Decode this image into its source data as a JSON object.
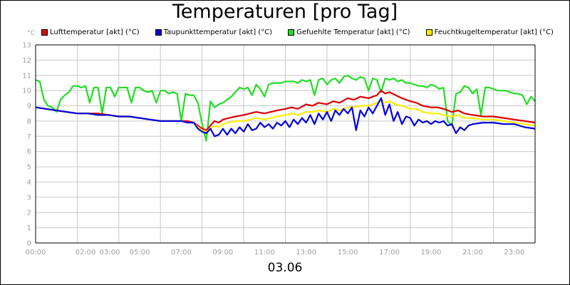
{
  "title": "Temperaturen [pro Tag]",
  "date": "03.06",
  "unit": "°C",
  "chart_data": {
    "type": "line",
    "title": "Temperaturen [pro Tag]",
    "ylabel": "°C",
    "xlabel": "03.06",
    "ylim": [
      0,
      13
    ],
    "xlim": [
      0,
      24
    ],
    "grid": true,
    "legend_position": "top",
    "y_ticks": [
      "0",
      "1",
      "2",
      "3",
      "4",
      "5",
      "6",
      "7",
      "8",
      "9",
      "10",
      "11",
      "12",
      "13"
    ],
    "x_ticks": [
      {
        "h": 0,
        "label": "00:00"
      },
      {
        "h": 2,
        "label": "02:00"
      },
      {
        "h": 3,
        "label": "03:00"
      },
      {
        "h": 5,
        "label": "05:00"
      },
      {
        "h": 7,
        "label": "07:00"
      },
      {
        "h": 9,
        "label": "09:00"
      },
      {
        "h": 11,
        "label": "11:00"
      },
      {
        "h": 13,
        "label": "13:00"
      },
      {
        "h": 15,
        "label": "15:00"
      },
      {
        "h": 17,
        "label": "17:00"
      },
      {
        "h": 19,
        "label": "19:00"
      },
      {
        "h": 21,
        "label": "21:00"
      },
      {
        "h": 23,
        "label": "23:00"
      }
    ],
    "x_grid_hours": [
      0,
      2,
      4,
      6,
      8,
      10,
      12,
      14,
      16,
      18,
      20,
      22,
      24
    ],
    "series": [
      {
        "name": "Gefuehlte Temperatur [akt] (°C)",
        "color": "#22dd22",
        "x": [
          0,
          0.2,
          0.4,
          0.6,
          0.8,
          1.0,
          1.2,
          1.4,
          1.6,
          1.8,
          2.0,
          2.2,
          2.4,
          2.6,
          2.8,
          3.0,
          3.2,
          3.4,
          3.6,
          3.8,
          4.0,
          4.2,
          4.4,
          4.6,
          4.8,
          5.0,
          5.2,
          5.4,
          5.6,
          5.8,
          6.0,
          6.2,
          6.4,
          6.6,
          6.8,
          7.0,
          7.2,
          7.4,
          7.6,
          7.8,
          8.0,
          8.2,
          8.4,
          8.6,
          8.8,
          9.0,
          9.2,
          9.4,
          9.6,
          9.8,
          10.0,
          10.2,
          10.4,
          10.6,
          10.8,
          11.0,
          11.2,
          11.4,
          11.6,
          11.8,
          12.0,
          12.2,
          12.4,
          12.6,
          12.8,
          13.0,
          13.2,
          13.4,
          13.6,
          13.8,
          14.0,
          14.2,
          14.4,
          14.6,
          14.8,
          15.0,
          15.2,
          15.4,
          15.6,
          15.8,
          16.0,
          16.2,
          16.4,
          16.6,
          16.8,
          17.0,
          17.2,
          17.4,
          17.6,
          17.8,
          18.0,
          18.2,
          18.4,
          18.6,
          18.8,
          19.0,
          19.2,
          19.4,
          19.6,
          19.8,
          20.0,
          20.2,
          20.4,
          20.6,
          20.8,
          21.0,
          21.2,
          21.4,
          21.6,
          21.8,
          22.0,
          22.2,
          22.4,
          22.6,
          22.8,
          23.0,
          23.2,
          23.4,
          23.6,
          23.8,
          24.0
        ],
        "values": [
          10.7,
          10.6,
          9.4,
          9.0,
          8.9,
          8.6,
          9.4,
          9.7,
          9.9,
          10.3,
          10.3,
          10.2,
          10.3,
          9.2,
          10.2,
          10.2,
          8.5,
          10.2,
          10.2,
          9.6,
          10.2,
          10.2,
          10.2,
          9.2,
          10.2,
          10.2,
          10.0,
          9.9,
          10.0,
          9.2,
          10.0,
          10.0,
          9.8,
          9.9,
          9.8,
          8.0,
          9.8,
          9.7,
          9.7,
          9.2,
          7.8,
          6.7,
          9.3,
          8.9,
          9.1,
          9.2,
          9.4,
          9.6,
          9.9,
          10.2,
          10.1,
          10.2,
          9.7,
          10.4,
          10.1,
          9.6,
          10.4,
          10.5,
          10.5,
          10.5,
          10.6,
          10.6,
          10.6,
          10.5,
          10.7,
          10.6,
          10.7,
          9.7,
          10.7,
          10.8,
          10.4,
          10.7,
          10.8,
          10.5,
          10.9,
          11.0,
          10.8,
          10.7,
          10.9,
          10.8,
          10.0,
          10.8,
          10.7,
          9.9,
          10.8,
          10.7,
          10.8,
          10.6,
          10.7,
          10.5,
          10.5,
          10.4,
          10.3,
          10.3,
          10.2,
          10.4,
          10.3,
          10.1,
          10.2,
          8.0,
          7.7,
          9.8,
          9.9,
          10.3,
          10.2,
          9.8,
          10.1,
          8.4,
          10.2,
          10.2,
          10.1,
          10.0,
          10.0,
          10.0,
          9.9,
          9.8,
          9.8,
          9.7,
          9.1,
          9.6,
          9.3
        ]
      },
      {
        "name": "Lufttemperatur [akt] (°C)",
        "color": "#dd0000",
        "x": [
          0,
          0.5,
          1.0,
          1.5,
          2.0,
          2.5,
          3.0,
          3.5,
          4.0,
          4.5,
          5.0,
          5.5,
          6.0,
          6.5,
          7.0,
          7.3,
          7.6,
          7.8,
          8.0,
          8.2,
          8.4,
          8.6,
          8.8,
          9.0,
          9.3,
          9.6,
          10.0,
          10.3,
          10.6,
          11.0,
          11.3,
          11.6,
          12.0,
          12.3,
          12.6,
          13.0,
          13.3,
          13.6,
          14.0,
          14.3,
          14.6,
          15.0,
          15.3,
          15.6,
          16.0,
          16.2,
          16.4,
          16.6,
          16.8,
          17.0,
          17.3,
          17.6,
          18.0,
          18.3,
          18.6,
          19.0,
          19.3,
          19.6,
          20.0,
          20.3,
          20.6,
          21.0,
          21.5,
          22.0,
          22.5,
          23.0,
          23.5,
          24.0
        ],
        "values": [
          8.9,
          8.8,
          8.7,
          8.6,
          8.5,
          8.5,
          8.5,
          8.4,
          8.3,
          8.3,
          8.2,
          8.1,
          8.0,
          8.0,
          8.0,
          8.0,
          7.9,
          7.7,
          7.5,
          7.4,
          7.7,
          8.0,
          7.9,
          8.1,
          8.2,
          8.3,
          8.4,
          8.5,
          8.6,
          8.5,
          8.6,
          8.7,
          8.8,
          8.9,
          8.8,
          9.1,
          9.0,
          9.2,
          9.1,
          9.3,
          9.2,
          9.5,
          9.4,
          9.6,
          9.5,
          9.6,
          9.7,
          10.0,
          9.8,
          9.9,
          9.7,
          9.5,
          9.3,
          9.2,
          9.0,
          8.9,
          8.9,
          8.8,
          8.6,
          8.7,
          8.5,
          8.4,
          8.3,
          8.3,
          8.2,
          8.1,
          8.0,
          7.9
        ]
      },
      {
        "name": "Feuchtkugeltemperatur [akt] (°C)",
        "color": "#ffee00",
        "x": [
          0,
          0.5,
          1.0,
          1.5,
          2.0,
          2.5,
          3.0,
          3.5,
          4.0,
          4.5,
          5.0,
          5.5,
          6.0,
          6.5,
          7.0,
          7.3,
          7.6,
          7.8,
          8.0,
          8.2,
          8.4,
          8.6,
          8.8,
          9.0,
          9.3,
          9.6,
          10.0,
          10.3,
          10.6,
          11.0,
          11.3,
          11.6,
          12.0,
          12.3,
          12.6,
          13.0,
          13.3,
          13.6,
          14.0,
          14.3,
          14.6,
          15.0,
          15.3,
          15.6,
          16.0,
          16.2,
          16.4,
          16.6,
          16.8,
          17.0,
          17.3,
          17.6,
          18.0,
          18.3,
          18.6,
          19.0,
          19.3,
          19.6,
          20.0,
          20.3,
          20.6,
          21.0,
          21.5,
          22.0,
          22.5,
          23.0,
          23.5,
          24.0
        ],
        "values": [
          8.9,
          8.8,
          8.7,
          8.6,
          8.5,
          8.5,
          8.4,
          8.4,
          8.3,
          8.3,
          8.2,
          8.1,
          8.0,
          8.0,
          8.0,
          7.9,
          7.9,
          7.6,
          7.4,
          7.3,
          7.5,
          7.7,
          7.6,
          7.8,
          7.9,
          8.0,
          8.0,
          8.1,
          8.2,
          8.1,
          8.2,
          8.3,
          8.4,
          8.5,
          8.4,
          8.6,
          8.6,
          8.7,
          8.6,
          8.8,
          8.7,
          8.9,
          8.9,
          9.0,
          9.0,
          9.1,
          9.2,
          9.4,
          9.2,
          9.3,
          9.1,
          9.0,
          8.8,
          8.8,
          8.6,
          8.5,
          8.5,
          8.4,
          8.3,
          8.4,
          8.2,
          8.2,
          8.1,
          8.1,
          8.0,
          7.9,
          7.8,
          7.7
        ]
      },
      {
        "name": "Taupunkttemperatur [akt] (°C)",
        "color": "#0000dd",
        "x": [
          0,
          0.5,
          1.0,
          1.5,
          2.0,
          2.5,
          3.0,
          3.5,
          4.0,
          4.5,
          5.0,
          5.5,
          6.0,
          6.5,
          7.0,
          7.3,
          7.6,
          7.8,
          8.0,
          8.2,
          8.4,
          8.6,
          8.8,
          9.0,
          9.2,
          9.4,
          9.6,
          9.8,
          10.0,
          10.2,
          10.4,
          10.6,
          10.8,
          11.0,
          11.2,
          11.4,
          11.6,
          11.8,
          12.0,
          12.2,
          12.4,
          12.6,
          12.8,
          13.0,
          13.2,
          13.4,
          13.6,
          13.8,
          14.0,
          14.2,
          14.4,
          14.6,
          14.8,
          15.0,
          15.2,
          15.4,
          15.6,
          15.8,
          16.0,
          16.2,
          16.4,
          16.6,
          16.8,
          17.0,
          17.2,
          17.4,
          17.6,
          17.8,
          18.0,
          18.2,
          18.4,
          18.6,
          18.8,
          19.0,
          19.2,
          19.4,
          19.6,
          19.8,
          20.0,
          20.2,
          20.4,
          20.6,
          20.8,
          21.0,
          21.5,
          22.0,
          22.5,
          23.0,
          23.5,
          24.0
        ],
        "values": [
          8.9,
          8.8,
          8.7,
          8.6,
          8.5,
          8.5,
          8.4,
          8.4,
          8.3,
          8.3,
          8.2,
          8.1,
          8.0,
          8.0,
          8.0,
          7.9,
          7.9,
          7.5,
          7.3,
          7.2,
          7.5,
          7.0,
          7.1,
          7.5,
          7.1,
          7.5,
          7.2,
          7.6,
          7.3,
          7.8,
          7.4,
          7.5,
          7.9,
          7.6,
          7.8,
          7.5,
          7.9,
          7.7,
          8.0,
          7.6,
          8.1,
          7.8,
          8.2,
          7.9,
          8.4,
          7.8,
          8.5,
          8.1,
          8.6,
          8.0,
          8.7,
          8.4,
          8.8,
          8.5,
          8.9,
          7.4,
          8.7,
          8.3,
          8.9,
          8.5,
          9.0,
          9.5,
          8.4,
          9.1,
          8.0,
          8.6,
          7.8,
          8.3,
          8.2,
          7.7,
          8.1,
          7.9,
          8.0,
          7.8,
          8.0,
          7.9,
          8.0,
          7.7,
          7.8,
          7.2,
          7.6,
          7.4,
          7.7,
          7.8,
          7.9,
          7.9,
          7.8,
          7.8,
          7.6,
          7.5
        ]
      }
    ],
    "legend": [
      {
        "name": "Lufttemperatur [akt] (°C)",
        "color": "#dd0000"
      },
      {
        "name": "Taupunkttemperatur [akt] (°C)",
        "color": "#0000dd"
      },
      {
        "name": "Gefuehlte Temperatur [akt] (°C)",
        "color": "#22dd22"
      },
      {
        "name": "Feuchtkugeltemperatur [akt] (°C)",
        "color": "#ffee00"
      }
    ]
  }
}
